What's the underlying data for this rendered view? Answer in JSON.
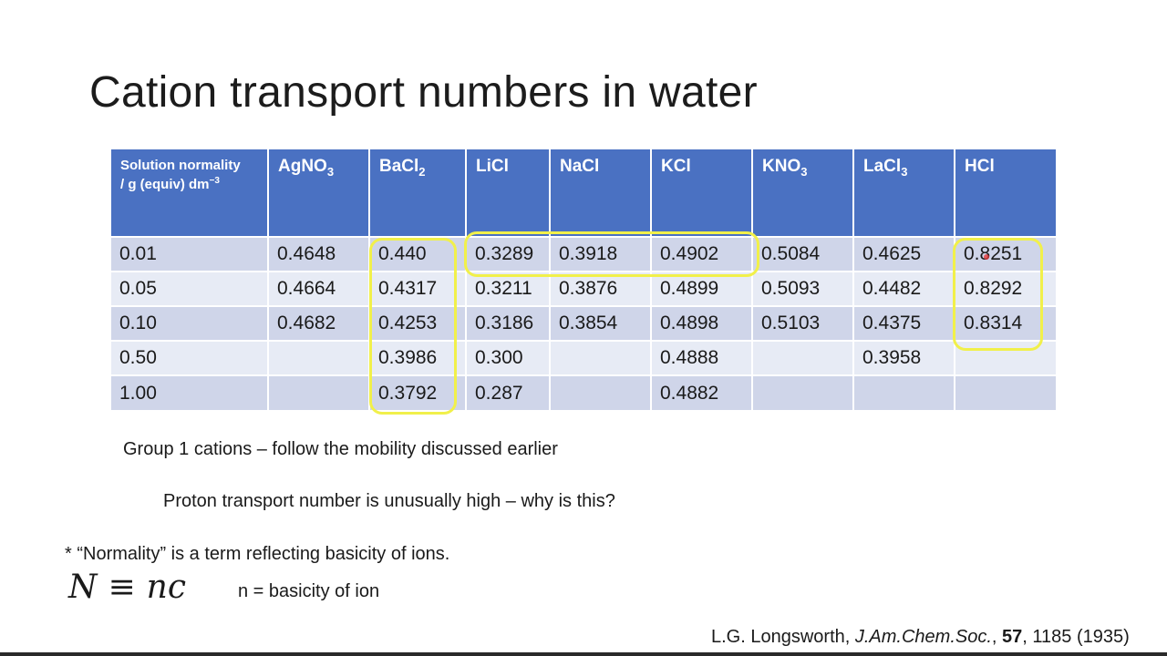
{
  "title": "Cation transport numbers in water",
  "table": {
    "header_first_line1": "Solution normality",
    "header_first_line2": "/ g (equiv) dm",
    "header_first_sup": "−3",
    "columns": [
      {
        "base": "AgNO",
        "sub": "3"
      },
      {
        "base": "BaCl",
        "sub": "2"
      },
      {
        "base": "LiCl",
        "sub": ""
      },
      {
        "base": "NaCl",
        "sub": ""
      },
      {
        "base": "KCl",
        "sub": ""
      },
      {
        "base": "KNO",
        "sub": "3"
      },
      {
        "base": "LaCl",
        "sub": "3"
      },
      {
        "base": "HCl",
        "sub": ""
      }
    ],
    "rows": [
      [
        "0.01",
        "0.4648",
        "0.440",
        "0.3289",
        "0.3918",
        "0.4902",
        "0.5084",
        "0.4625",
        "0.8251"
      ],
      [
        "0.05",
        "0.4664",
        "0.4317",
        "0.3211",
        "0.3876",
        "0.4899",
        "0.5093",
        "0.4482",
        "0.8292"
      ],
      [
        "0.10",
        "0.4682",
        "0.4253",
        "0.3186",
        "0.3854",
        "0.4898",
        "0.5103",
        "0.4375",
        "0.8314"
      ],
      [
        "0.50",
        "",
        "0.3986",
        "0.300",
        "",
        "0.4888",
        "",
        "0.3958",
        ""
      ],
      [
        "1.00",
        "",
        "0.3792",
        "0.287",
        "",
        "0.4882",
        "",
        "",
        ""
      ]
    ]
  },
  "highlight_color": "#f1f04a",
  "header_color": "#4a71c2",
  "notes": {
    "group1": "Group 1 cations – follow the mobility discussed earlier",
    "proton": "Proton transport number is unusually high – why is this?",
    "normality": "* “Normality” is a term reflecting basicity of ions.",
    "formula_lhs": "N",
    "formula_op": "≡",
    "formula_rhs": "nc",
    "n_def": "n = basicity of ion"
  },
  "citation": {
    "authors": "L.G. Longsworth, ",
    "journal": "J.Am.Chem.Soc.",
    "sep": ", ",
    "volume": "57",
    "rest": ", 1185 (1935)"
  }
}
